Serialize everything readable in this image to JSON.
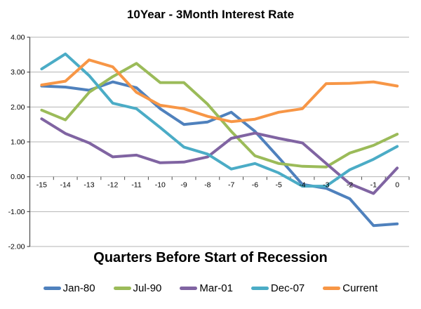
{
  "chart_data": {
    "type": "line",
    "title": "10Year - 3Month Interest Rate",
    "xlabel": "Quarters Before Start of Recession",
    "ylabel": "",
    "x": [
      -15,
      -14,
      -13,
      -12,
      -11,
      -10,
      -9,
      -8,
      -7,
      -6,
      -5,
      -4,
      -3,
      -2,
      -1,
      0
    ],
    "x_tick_labels": [
      "-15",
      "-14",
      "-13",
      "-12",
      "-11",
      "-10",
      "-9",
      "-8",
      "-7",
      "-6",
      "-5",
      "-4",
      "-3",
      "-2",
      "-1",
      "0"
    ],
    "ylim": [
      -2,
      4
    ],
    "y_ticks": [
      4,
      3,
      2,
      1,
      0,
      -1,
      -2
    ],
    "y_tick_labels": [
      "4.00",
      "3.00",
      "2.00",
      "1.00",
      "0.00",
      "-1.00",
      "-2.00"
    ],
    "grid": true,
    "legend_position": "bottom",
    "gridline_color": "#b3b3b3",
    "axis_color": "#4d4d4d",
    "text_color": "#000000",
    "series": [
      {
        "name": "Jan-80",
        "color": "#4F81BD",
        "values": [
          2.6,
          2.57,
          2.48,
          2.72,
          2.55,
          1.95,
          1.5,
          1.57,
          1.85,
          1.3,
          0.55,
          -0.22,
          -0.33,
          -0.63,
          -1.4,
          -1.35
        ]
      },
      {
        "name": "Jul-90",
        "color": "#9BBB59",
        "values": [
          1.91,
          1.63,
          2.42,
          2.87,
          3.25,
          2.7,
          2.7,
          2.08,
          1.3,
          0.6,
          0.38,
          0.3,
          0.28,
          0.68,
          0.9,
          1.22
        ]
      },
      {
        "name": "Mar-01",
        "color": "#8064A2",
        "values": [
          1.66,
          1.24,
          0.97,
          0.57,
          0.62,
          0.4,
          0.42,
          0.57,
          1.1,
          1.25,
          1.1,
          0.97,
          0.38,
          -0.2,
          -0.48,
          0.25
        ]
      },
      {
        "name": "Dec-07",
        "color": "#4BACC6",
        "values": [
          3.09,
          3.52,
          2.9,
          2.11,
          1.95,
          1.41,
          0.85,
          0.65,
          0.22,
          0.38,
          0.11,
          -0.27,
          -0.27,
          0.2,
          0.5,
          0.87
        ]
      },
      {
        "name": "Current",
        "color": "#F79646",
        "values": [
          2.63,
          2.74,
          3.35,
          3.15,
          2.42,
          2.05,
          1.95,
          1.73,
          1.58,
          1.65,
          1.85,
          1.95,
          2.67,
          2.68,
          2.72,
          2.6
        ]
      }
    ]
  }
}
